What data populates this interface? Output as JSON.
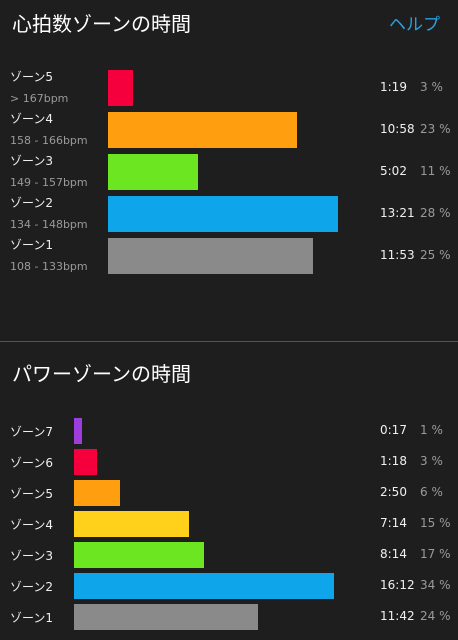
{
  "header": {
    "title": "心拍数ゾーンの時間",
    "help": "ヘルプ"
  },
  "heart_rate": {
    "zones": [
      {
        "name": "ゾーン5",
        "range": "> 167bpm",
        "time": "1:19",
        "percent": 3,
        "percent_label": "3 %",
        "color": "#f5003c"
      },
      {
        "name": "ゾーン4",
        "range": "158 - 166bpm",
        "time": "10:58",
        "percent": 23,
        "percent_label": "23 %",
        "color": "#ff9f10"
      },
      {
        "name": "ゾーン3",
        "range": "149 - 157bpm",
        "time": "5:02",
        "percent": 11,
        "percent_label": "11 %",
        "color": "#6be621"
      },
      {
        "name": "ゾーン2",
        "range": "134 - 148bpm",
        "time": "13:21",
        "percent": 28,
        "percent_label": "28 %",
        "color": "#0ea5ea"
      },
      {
        "name": "ゾーン1",
        "range": "108 - 133bpm",
        "time": "11:53",
        "percent": 25,
        "percent_label": "25 %",
        "color": "#8a8a8a"
      }
    ]
  },
  "power": {
    "title": "パワーゾーンの時間",
    "zones": [
      {
        "name": "ゾーン7",
        "time": "0:17",
        "percent": 1,
        "percent_label": "1 %",
        "color": "#9d3ddb"
      },
      {
        "name": "ゾーン6",
        "time": "1:18",
        "percent": 3,
        "percent_label": "3 %",
        "color": "#f5003c"
      },
      {
        "name": "ゾーン5",
        "time": "2:50",
        "percent": 6,
        "percent_label": "6 %",
        "color": "#ff9f10"
      },
      {
        "name": "ゾーン4",
        "time": "7:14",
        "percent": 15,
        "percent_label": "15 %",
        "color": "#ffd11a"
      },
      {
        "name": "ゾーン3",
        "time": "8:14",
        "percent": 17,
        "percent_label": "17 %",
        "color": "#6be621"
      },
      {
        "name": "ゾーン2",
        "time": "16:12",
        "percent": 34,
        "percent_label": "34 %",
        "color": "#0ea5ea"
      },
      {
        "name": "ゾーン1",
        "time": "11:42",
        "percent": 24,
        "percent_label": "24 %",
        "color": "#8a8a8a"
      }
    ]
  }
}
